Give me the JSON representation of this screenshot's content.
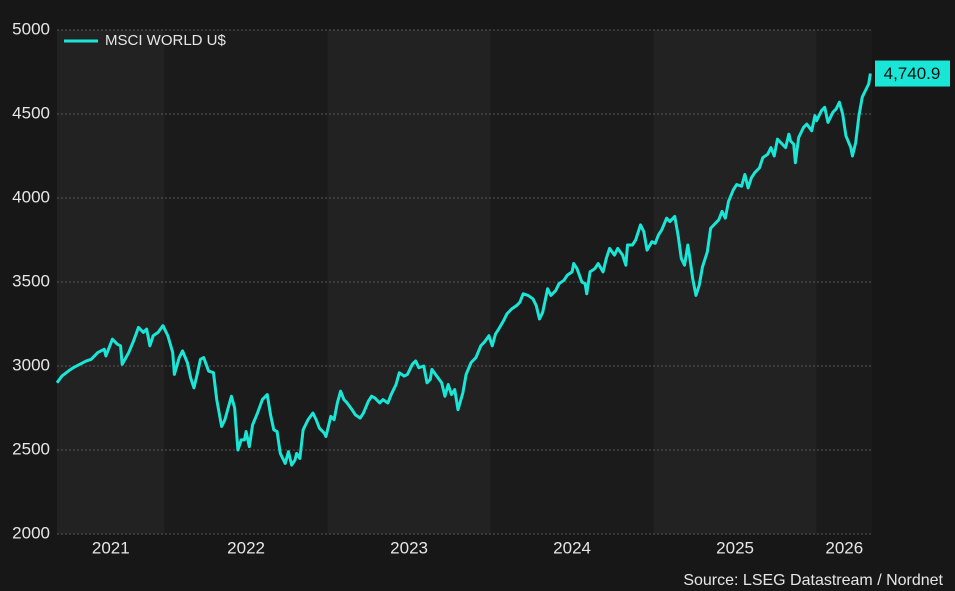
{
  "chart_data": {
    "type": "line",
    "source": "Source: LSEG Datastream / Nordnet",
    "annotation": "4,740.9",
    "x": [
      2021.34,
      2021.37,
      2021.41,
      2021.44,
      2021.48,
      2021.52,
      2021.55,
      2021.59,
      2021.63,
      2021.64,
      2021.68,
      2021.71,
      2021.73,
      2021.74,
      2021.78,
      2021.81,
      2021.84,
      2021.87,
      2021.89,
      2021.91,
      2021.93,
      2021.96,
      2021.99,
      2022.02,
      2022.05,
      2022.06,
      2022.09,
      2022.11,
      2022.14,
      2022.16,
      2022.18,
      2022.2,
      2022.22,
      2022.24,
      2022.27,
      2022.3,
      2022.32,
      2022.35,
      2022.37,
      2022.41,
      2022.43,
      2022.45,
      2022.47,
      2022.49,
      2022.5,
      2022.52,
      2022.54,
      2022.57,
      2022.6,
      2022.63,
      2022.65,
      2022.67,
      2022.69,
      2022.71,
      2022.74,
      2022.76,
      2022.78,
      2022.8,
      2022.81,
      2022.83,
      2022.85,
      2022.88,
      2022.91,
      2022.93,
      2022.95,
      2022.98,
      2022.99,
      2023.02,
      2023.04,
      2023.06,
      2023.08,
      2023.1,
      2023.12,
      2023.15,
      2023.17,
      2023.2,
      2023.22,
      2023.25,
      2023.27,
      2023.29,
      2023.32,
      2023.34,
      2023.37,
      2023.39,
      2023.42,
      2023.44,
      2023.47,
      2023.49,
      2023.52,
      2023.54,
      2023.56,
      2023.59,
      2023.61,
      2023.63,
      2023.64,
      2023.67,
      2023.7,
      2023.72,
      2023.74,
      2023.76,
      2023.78,
      2023.8,
      2023.83,
      2023.85,
      2023.88,
      2023.91,
      2023.94,
      2023.96,
      2023.99,
      2024.01,
      2024.03,
      2024.05,
      2024.08,
      2024.1,
      2024.13,
      2024.16,
      2024.18,
      2024.2,
      2024.23,
      2024.26,
      2024.28,
      2024.3,
      2024.32,
      2024.35,
      2024.37,
      2024.4,
      2024.42,
      2024.45,
      2024.47,
      2024.5,
      2024.51,
      2024.53,
      2024.56,
      2024.58,
      2024.59,
      2024.61,
      2024.64,
      2024.66,
      2024.69,
      2024.71,
      2024.73,
      2024.76,
      2024.78,
      2024.81,
      2024.83,
      2024.84,
      2024.87,
      2024.89,
      2024.92,
      2024.94,
      2024.96,
      2024.99,
      2025.01,
      2025.03,
      2025.05,
      2025.08,
      2025.1,
      2025.13,
      2025.15,
      2025.17,
      2025.19,
      2025.21,
      2025.22,
      2025.24,
      2025.26,
      2025.28,
      2025.3,
      2025.33,
      2025.35,
      2025.38,
      2025.4,
      2025.42,
      2025.44,
      2025.46,
      2025.49,
      2025.51,
      2025.54,
      2025.56,
      2025.58,
      2025.6,
      2025.62,
      2025.65,
      2025.67,
      2025.7,
      2025.72,
      2025.74,
      2025.76,
      2025.79,
      2025.81,
      2025.83,
      2025.84,
      2025.86,
      2025.87,
      2025.89,
      2025.92,
      2025.94,
      2025.97,
      2025.99,
      2026.0,
      2026.03,
      2026.05,
      2026.07,
      2026.1,
      2026.12,
      2026.14,
      2026.16,
      2026.18,
      2026.21,
      2026.22,
      2026.24,
      2026.26,
      2026.28,
      2026.3,
      2026.32,
      2026.33
    ],
    "series": [
      {
        "name": "MSCI WORLD U$",
        "color": "#19e6d6",
        "values": [
          2900,
          2940,
          2970,
          2990,
          3010,
          3030,
          3040,
          3080,
          3100,
          3060,
          3160,
          3130,
          3120,
          3010,
          3080,
          3150,
          3230,
          3200,
          3220,
          3120,
          3180,
          3200,
          3240,
          3180,
          3080,
          2950,
          3050,
          3090,
          3020,
          2930,
          2870,
          2950,
          3040,
          3050,
          2970,
          2960,
          2800,
          2640,
          2680,
          2820,
          2750,
          2500,
          2560,
          2560,
          2610,
          2520,
          2650,
          2720,
          2800,
          2830,
          2710,
          2620,
          2610,
          2480,
          2420,
          2490,
          2410,
          2440,
          2480,
          2450,
          2620,
          2680,
          2720,
          2680,
          2630,
          2600,
          2580,
          2700,
          2680,
          2780,
          2850,
          2800,
          2780,
          2740,
          2710,
          2690,
          2720,
          2790,
          2820,
          2810,
          2780,
          2800,
          2780,
          2830,
          2890,
          2960,
          2940,
          2950,
          3010,
          3030,
          2990,
          3000,
          2900,
          2920,
          2980,
          2940,
          2900,
          2820,
          2890,
          2830,
          2860,
          2740,
          2840,
          2950,
          3020,
          3050,
          3120,
          3140,
          3180,
          3120,
          3190,
          3220,
          3270,
          3310,
          3340,
          3360,
          3380,
          3430,
          3420,
          3400,
          3360,
          3280,
          3320,
          3460,
          3420,
          3450,
          3490,
          3510,
          3540,
          3560,
          3610,
          3580,
          3500,
          3490,
          3430,
          3560,
          3580,
          3610,
          3560,
          3640,
          3700,
          3660,
          3700,
          3660,
          3600,
          3720,
          3720,
          3750,
          3840,
          3800,
          3690,
          3740,
          3730,
          3780,
          3810,
          3880,
          3860,
          3890,
          3780,
          3640,
          3600,
          3720,
          3660,
          3520,
          3420,
          3480,
          3590,
          3680,
          3820,
          3850,
          3870,
          3920,
          3880,
          3980,
          4050,
          4080,
          4070,
          4140,
          4060,
          4120,
          4150,
          4180,
          4240,
          4260,
          4300,
          4250,
          4350,
          4320,
          4300,
          4380,
          4340,
          4320,
          4210,
          4360,
          4420,
          4440,
          4400,
          4490,
          4460,
          4520,
          4540,
          4450,
          4510,
          4530,
          4570,
          4500,
          4370,
          4300,
          4250,
          4330,
          4490,
          4600,
          4640,
          4680,
          4740.9
        ]
      }
    ],
    "xlim": [
      2021.34,
      2026.34
    ],
    "xticks": [
      2021,
      2022,
      2023,
      2024,
      2025,
      2026
    ],
    "ylim": [
      2000,
      5000
    ],
    "yticks": [
      2000,
      2500,
      3000,
      3500,
      4000,
      4500,
      5000
    ],
    "grid": true,
    "legend": "top-left"
  }
}
